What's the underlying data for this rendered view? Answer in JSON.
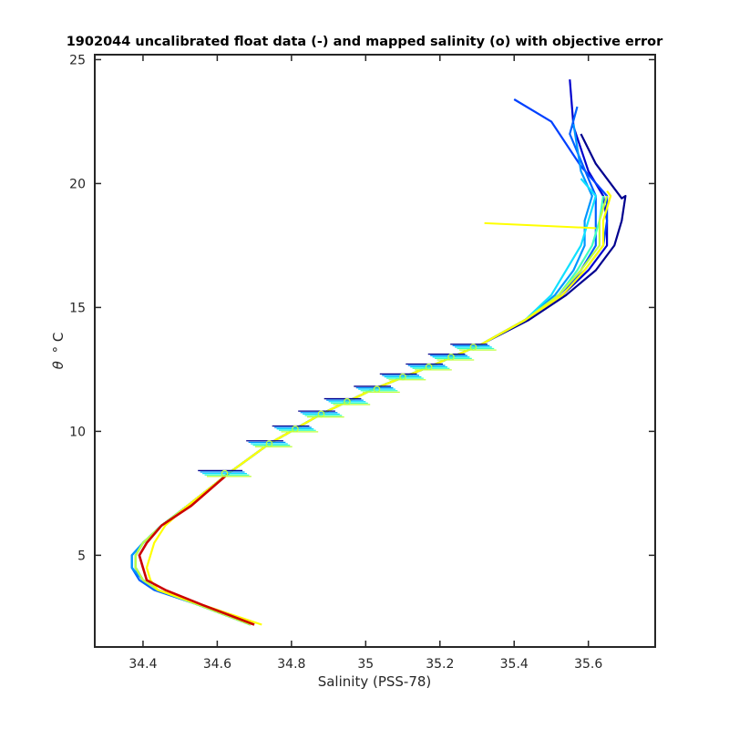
{
  "chart_data": {
    "type": "line",
    "title": "1902044 uncalibrated float data (-) and mapped salinity (o) with objective error",
    "xlabel": "Salinity (PSS-78)",
    "ylabel_symbol": "θ",
    "ylabel_unit": "° C",
    "xlim": [
      34.27,
      35.78
    ],
    "ylim": [
      1.3,
      25.2
    ],
    "xticks": [
      34.4,
      34.6,
      34.8,
      35,
      35.2,
      35.4,
      35.6
    ],
    "yticks": [
      5,
      10,
      15,
      20,
      25
    ],
    "grid": false,
    "legend": "none",
    "colors": {
      "axis": "#262626",
      "dark_blue": "#00008f",
      "blue": "#0040ff",
      "light_blue": "#0096ff",
      "cyan": "#10e0ff",
      "green_cyan": "#40ffbf",
      "yellow_green": "#c0ff40",
      "yellow": "#ffff00",
      "red": "#cc0000"
    },
    "profile_shape": {
      "theta": [
        2.2,
        3.0,
        3.6,
        4.0,
        4.5,
        5.0,
        5.5,
        6.2,
        7.0,
        8.3,
        9.5,
        10.7,
        11.7,
        12.6,
        13.5,
        14.5,
        15.5,
        16.5,
        17.5,
        18.5,
        19.5
      ],
      "salinity": [
        34.69,
        34.55,
        34.44,
        34.4,
        34.38,
        34.38,
        34.4,
        34.45,
        34.52,
        34.63,
        34.74,
        34.88,
        35.02,
        35.17,
        35.31,
        35.43,
        35.52,
        35.58,
        35.62,
        35.63,
        35.64
      ]
    },
    "series": [
      {
        "color": "#00008f",
        "salinity_offsets": [
          0.0,
          0.0,
          0.0,
          0.0,
          0.0,
          0.0,
          0.0,
          0.0,
          0.0,
          0.0,
          0.0,
          0.0,
          0.0,
          0.0,
          0.0,
          0.01,
          0.02,
          0.04,
          0.05,
          0.06,
          0.06
        ],
        "upper": [
          [
            35.69,
            19.4
          ],
          [
            35.62,
            20.8
          ],
          [
            35.58,
            22.0
          ]
        ]
      },
      {
        "color": "#0000cd",
        "salinity_offsets": [
          0.0,
          0.0,
          0.0,
          0.0,
          0.0,
          0.0,
          0.0,
          0.0,
          0.0,
          0.0,
          0.0,
          0.0,
          0.0,
          0.0,
          0.0,
          0.0,
          0.01,
          0.02,
          0.03,
          0.02,
          0.0
        ],
        "upper": [
          [
            35.6,
            20.5
          ],
          [
            35.56,
            22.3
          ],
          [
            35.55,
            24.2
          ]
        ]
      },
      {
        "color": "#0040ff",
        "salinity_offsets": [
          0.0,
          0.0,
          0.0,
          0.0,
          0.0,
          0.0,
          0.0,
          0.0,
          0.0,
          0.0,
          0.0,
          0.0,
          0.0,
          0.0,
          0.0,
          0.0,
          0.0,
          0.01,
          0.02,
          0.02,
          0.01
        ],
        "upper": [
          [
            35.58,
            20.7
          ],
          [
            35.5,
            22.5
          ],
          [
            35.4,
            23.4
          ]
        ]
      },
      {
        "color": "#0060ff",
        "salinity_offsets": [
          0.0,
          0.0,
          -0.01,
          -0.01,
          -0.01,
          -0.01,
          0.0,
          0.0,
          0.0,
          0.0,
          0.0,
          0.0,
          0.0,
          0.0,
          0.0,
          0.0,
          0.0,
          0.0,
          0.0,
          -0.01,
          -0.02
        ],
        "upper": [
          [
            35.6,
            20.2
          ],
          [
            35.55,
            22.0
          ],
          [
            35.57,
            23.1
          ]
        ]
      },
      {
        "color": "#0096ff",
        "salinity_offsets": [
          0.0,
          0.0,
          0.0,
          0.0,
          -0.01,
          -0.01,
          0.0,
          0.0,
          0.0,
          0.0,
          0.0,
          0.0,
          0.0,
          0.0,
          0.0,
          0.0,
          -0.01,
          -0.02,
          -0.03,
          -0.04,
          -0.03
        ],
        "upper": [
          [
            35.58,
            20.5
          ],
          [
            35.56,
            22.4
          ]
        ]
      },
      {
        "color": "#10e0ff",
        "salinity_offsets": [
          0.0,
          0.0,
          0.0,
          0.0,
          0.0,
          0.0,
          0.0,
          0.0,
          0.0,
          0.0,
          0.0,
          0.0,
          0.0,
          0.0,
          0.0,
          0.0,
          -0.02,
          -0.04,
          -0.04,
          -0.03,
          -0.02
        ],
        "upper": [
          [
            35.58,
            20.2
          ]
        ]
      },
      {
        "color": "#40ffbf",
        "salinity_offsets": [
          0.0,
          0.0,
          0.0,
          0.0,
          0.0,
          0.0,
          0.0,
          0.0,
          0.0,
          0.0,
          0.0,
          0.0,
          0.0,
          0.0,
          0.0,
          0.0,
          0.0,
          -0.01,
          -0.01,
          0.0,
          0.0
        ],
        "upper": []
      },
      {
        "color": "#c0ff40",
        "salinity_offsets": [
          0.0,
          0.0,
          0.0,
          0.0,
          0.0,
          0.0,
          0.0,
          0.0,
          0.0,
          0.0,
          0.0,
          0.0,
          0.0,
          0.0,
          0.0,
          0.0,
          0.0,
          0.0,
          0.01,
          0.0,
          0.01
        ],
        "upper": []
      },
      {
        "color": "#ffff00",
        "salinity_offsets": [
          0.03,
          0.01,
          0.0,
          0.02,
          0.03,
          0.04,
          0.03,
          0.01,
          0.0,
          0.0,
          0.0,
          0.0,
          0.0,
          0.0,
          0.0,
          0.0,
          0.01,
          0.01,
          0.02,
          0.01,
          0.02
        ],
        "upper": [
          [
            35.65,
            19.7
          ]
        ]
      },
      {
        "color": "#cc0000",
        "salinity_offsets": [
          0.01,
          0.01,
          0.02,
          0.01,
          0.02,
          0.01,
          0.01,
          0.0,
          0.01,
          0.0
        ],
        "upper": []
      }
    ],
    "yellow_spike": [
      [
        35.62,
        18.2
      ],
      [
        35.32,
        18.4
      ]
    ],
    "mapped_levels": [
      {
        "theta": 8.3,
        "salinity": 34.62,
        "error": 0.06
      },
      {
        "theta": 9.5,
        "salinity": 34.74,
        "error": 0.05
      },
      {
        "theta": 10.1,
        "salinity": 34.81,
        "error": 0.05
      },
      {
        "theta": 10.7,
        "salinity": 34.88,
        "error": 0.05
      },
      {
        "theta": 11.2,
        "salinity": 34.95,
        "error": 0.05
      },
      {
        "theta": 11.7,
        "salinity": 35.03,
        "error": 0.05
      },
      {
        "theta": 12.2,
        "salinity": 35.1,
        "error": 0.05
      },
      {
        "theta": 12.6,
        "salinity": 35.17,
        "error": 0.05
      },
      {
        "theta": 13.0,
        "salinity": 35.23,
        "error": 0.05
      },
      {
        "theta": 13.4,
        "salinity": 35.29,
        "error": 0.05
      }
    ]
  }
}
